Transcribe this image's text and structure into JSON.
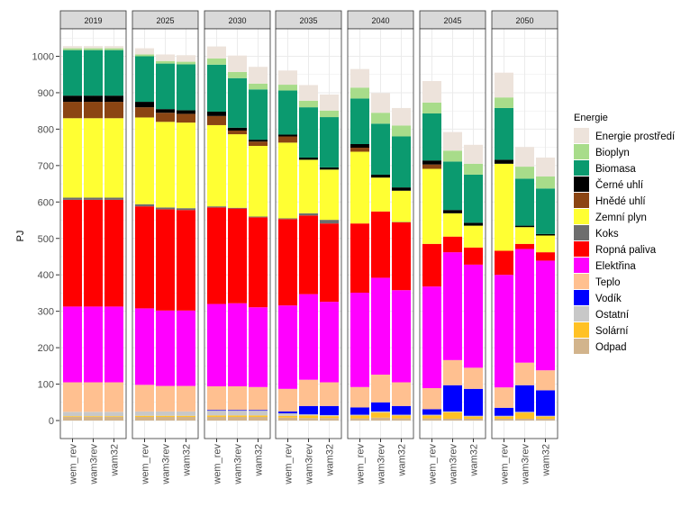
{
  "chart_data": {
    "type": "bar",
    "stacked": true,
    "title": "",
    "xlabel": "",
    "ylabel": "PJ",
    "ylim": [
      0,
      1050
    ],
    "yticks": [
      0,
      100,
      200,
      300,
      400,
      500,
      600,
      700,
      800,
      900,
      1000
    ],
    "grid": true,
    "facets": [
      "2019",
      "2025",
      "2030",
      "2035",
      "2040",
      "2045",
      "2050"
    ],
    "categories": [
      "wem_rev",
      "wam3rev",
      "wam32"
    ],
    "legend_title": "Energie",
    "legend_position": "right",
    "series_order_note_free": true,
    "series": [
      {
        "name": "Odpad",
        "color": "#D2B48C",
        "values": [
          [
            10,
            10,
            10
          ],
          [
            10,
            10,
            10
          ],
          [
            10,
            10,
            10
          ],
          [
            8,
            7,
            7
          ],
          [
            6,
            8,
            6
          ],
          [
            6,
            5,
            5
          ],
          [
            5,
            5,
            5
          ]
        ]
      },
      {
        "name": "Solární",
        "color": "#FFC125",
        "values": [
          [
            2,
            2,
            2
          ],
          [
            3,
            3,
            3
          ],
          [
            4,
            4,
            4
          ],
          [
            5,
            7,
            5
          ],
          [
            8,
            14,
            8
          ],
          [
            8,
            18,
            6
          ],
          [
            6,
            17,
            6
          ]
        ]
      },
      {
        "name": "Ostatní",
        "color": "#C8C8C8",
        "values": [
          [
            12,
            12,
            12
          ],
          [
            12,
            12,
            12
          ],
          [
            13,
            13,
            13
          ],
          [
            7,
            3,
            3
          ],
          [
            2,
            3,
            2
          ],
          [
            2,
            2,
            2
          ],
          [
            2,
            2,
            2
          ]
        ]
      },
      {
        "name": "Vodík",
        "color": "#0000FF",
        "values": [
          [
            0,
            0,
            0
          ],
          [
            0,
            0,
            0
          ],
          [
            2,
            2,
            2
          ],
          [
            5,
            23,
            25
          ],
          [
            20,
            25,
            24
          ],
          [
            15,
            72,
            74
          ],
          [
            22,
            73,
            70
          ]
        ]
      },
      {
        "name": "Teplo",
        "color": "#FFC090",
        "values": [
          [
            81,
            81,
            81
          ],
          [
            73,
            70,
            70
          ],
          [
            65,
            65,
            63
          ],
          [
            62,
            72,
            65
          ],
          [
            56,
            76,
            65
          ],
          [
            58,
            69,
            58
          ],
          [
            56,
            62,
            55
          ]
        ]
      },
      {
        "name": "Elektřina",
        "color": "#FF00FF",
        "values": [
          [
            208,
            208,
            208
          ],
          [
            210,
            207,
            207
          ],
          [
            226,
            228,
            219
          ],
          [
            229,
            235,
            221
          ],
          [
            259,
            266,
            253
          ],
          [
            279,
            296,
            283
          ],
          [
            309,
            312,
            301
          ]
        ]
      },
      {
        "name": "Ropná paliva",
        "color": "#FF0000",
        "values": [
          [
            293,
            293,
            293
          ],
          [
            280,
            278,
            276
          ],
          [
            265,
            260,
            247
          ],
          [
            237,
            216,
            215
          ],
          [
            190,
            182,
            186
          ],
          [
            117,
            43,
            47
          ],
          [
            66,
            14,
            23
          ]
        ]
      },
      {
        "name": "Koks",
        "color": "#6E6E6E",
        "values": [
          [
            6,
            6,
            6
          ],
          [
            6,
            5,
            5
          ],
          [
            3,
            2,
            2
          ],
          [
            2,
            6,
            10
          ],
          [
            0,
            0,
            1
          ],
          [
            0,
            0,
            0
          ],
          [
            0,
            0,
            0
          ]
        ]
      },
      {
        "name": "Zemní plyn",
        "color": "#FFFF33",
        "values": [
          [
            218,
            218,
            218
          ],
          [
            238,
            235,
            235
          ],
          [
            223,
            202,
            194
          ],
          [
            208,
            147,
            138
          ],
          [
            197,
            93,
            86
          ],
          [
            206,
            64,
            60
          ],
          [
            239,
            46,
            46
          ]
        ]
      },
      {
        "name": "Hnědé uhlí",
        "color": "#8B4513",
        "values": [
          [
            45,
            45,
            45
          ],
          [
            28,
            25,
            24
          ],
          [
            25,
            10,
            12
          ],
          [
            17,
            0,
            0
          ],
          [
            11,
            0,
            0
          ],
          [
            12,
            0,
            0
          ],
          [
            0,
            0,
            0
          ]
        ]
      },
      {
        "name": "Černé uhlí",
        "color": "#000000",
        "values": [
          [
            17,
            17,
            17
          ],
          [
            15,
            10,
            10
          ],
          [
            12,
            8,
            5
          ],
          [
            5,
            6,
            6
          ],
          [
            10,
            8,
            9
          ],
          [
            11,
            9,
            8
          ],
          [
            11,
            4,
            4
          ]
        ]
      },
      {
        "name": "Biomasa",
        "color": "#0B9A6F",
        "values": [
          [
            125,
            125,
            125
          ],
          [
            125,
            125,
            126
          ],
          [
            129,
            136,
            138
          ],
          [
            121,
            138,
            138
          ],
          [
            125,
            140,
            140
          ],
          [
            129,
            133,
            132
          ],
          [
            142,
            129,
            125
          ]
        ]
      },
      {
        "name": "Bioplyn",
        "color": "#A8DC8A",
        "values": [
          [
            5,
            5,
            5
          ],
          [
            5,
            7,
            7
          ],
          [
            17,
            17,
            16
          ],
          [
            16,
            18,
            18
          ],
          [
            30,
            30,
            30
          ],
          [
            30,
            30,
            30
          ],
          [
            29,
            33,
            33
          ]
        ]
      },
      {
        "name": "Energie prostředí",
        "color": "#EDE3DB",
        "values": [
          [
            6,
            6,
            6
          ],
          [
            17,
            18,
            18
          ],
          [
            33,
            45,
            46
          ],
          [
            39,
            43,
            44
          ],
          [
            51,
            54,
            48
          ],
          [
            59,
            51,
            52
          ],
          [
            68,
            54,
            52
          ]
        ]
      }
    ]
  }
}
